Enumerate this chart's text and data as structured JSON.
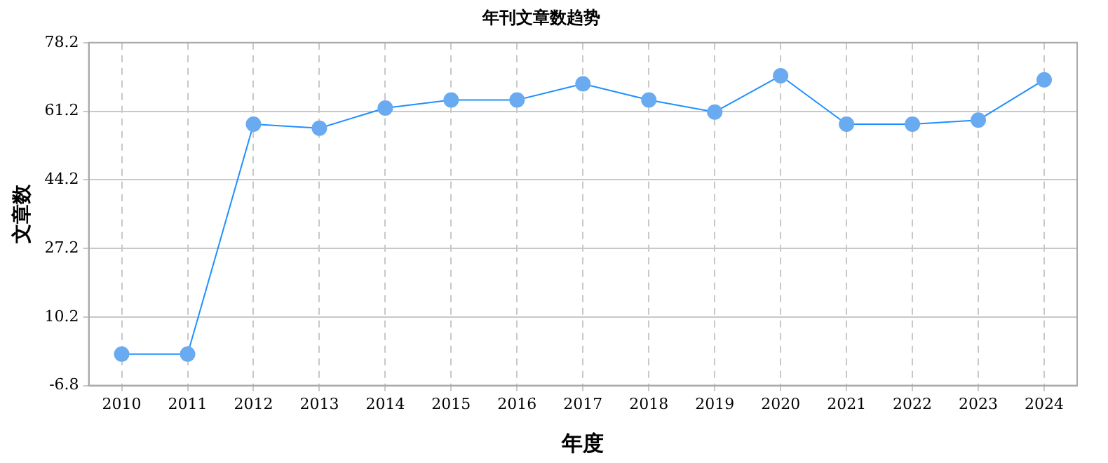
{
  "chart_data": {
    "type": "line",
    "title": "年刊文章数趋势",
    "xlabel": "年度",
    "ylabel": "文章数",
    "categories": [
      "2010",
      "2011",
      "2012",
      "2013",
      "2014",
      "2015",
      "2016",
      "2017",
      "2018",
      "2019",
      "2020",
      "2021",
      "2022",
      "2023",
      "2024"
    ],
    "series": [
      {
        "color": "#1e90ff",
        "values": [
          1,
          1,
          58,
          57,
          62,
          64,
          64,
          68,
          64,
          61,
          70,
          58,
          58,
          59,
          69
        ]
      }
    ],
    "ylim": [
      -6.8,
      78.2
    ],
    "yticks": [
      -6.8,
      10.2,
      27.2,
      44.2,
      61.2,
      78.2
    ],
    "grid": true,
    "legend": false,
    "marker": "circle",
    "line_style": "solid"
  }
}
